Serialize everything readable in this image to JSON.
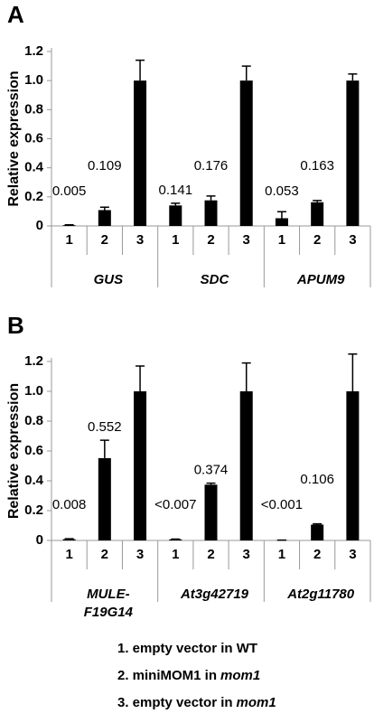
{
  "chart_data": [
    {
      "type": "bar",
      "panel": "A",
      "ylabel": "Relative expression",
      "categories": [
        "1",
        "2",
        "3",
        "1",
        "2",
        "3",
        "1",
        "2",
        "3"
      ],
      "groups": [
        [
          "GUS"
        ],
        [
          "SDC"
        ],
        [
          "APUM9"
        ]
      ],
      "color": "#000000",
      "values": [
        0.005,
        0.109,
        1,
        0.141,
        0.176,
        1,
        0.053,
        0.163,
        1
      ],
      "errors": [
        0.003,
        0.02,
        0.14,
        0.015,
        0.03,
        0.1,
        0.045,
        0.012,
        0.045
      ],
      "value_labels": [
        "0.005",
        "0.109",
        null,
        "0.141",
        "0.176",
        null,
        "0.053",
        "0.163",
        null
      ],
      "ylim": [
        0,
        1.2
      ],
      "yticks": [
        0,
        0.2,
        0.4,
        0.6,
        0.8,
        {
          "value": 1,
          "label": "1.0"
        },
        1.2
      ]
    },
    {
      "type": "bar",
      "panel": "B",
      "ylabel": "Relative expression",
      "categories": [
        "1",
        "2",
        "3",
        "1",
        "2",
        "3",
        "1",
        "2",
        "3"
      ],
      "groups": [
        [
          "MULE-",
          "F19G14"
        ],
        [
          "At3g42719"
        ],
        [
          "At2g11780"
        ]
      ],
      "color": "#000000",
      "values": [
        0.008,
        0.552,
        1,
        0.007,
        0.374,
        1,
        0.001,
        0.106,
        1
      ],
      "errors": [
        0.003,
        0.12,
        0.17,
        0.002,
        0.01,
        0.19,
        0.001,
        0.005,
        0.25
      ],
      "value_labels": [
        "0.008",
        "0.552",
        null,
        "<0.007",
        "0.374",
        null,
        "<0.001",
        "0.106",
        null
      ],
      "ylim": [
        0,
        1.2
      ],
      "yticks": [
        0,
        0.2,
        0.4,
        0.6,
        0.8,
        {
          "value": 1,
          "label": "1.0"
        },
        1.2
      ]
    }
  ],
  "legend": [
    {
      "text": "1. empty vector in WT"
    },
    {
      "text": "2. miniMOM1 in",
      "emph": "mom1"
    },
    {
      "text": "3. empty vector in",
      "emph": "mom1"
    }
  ]
}
